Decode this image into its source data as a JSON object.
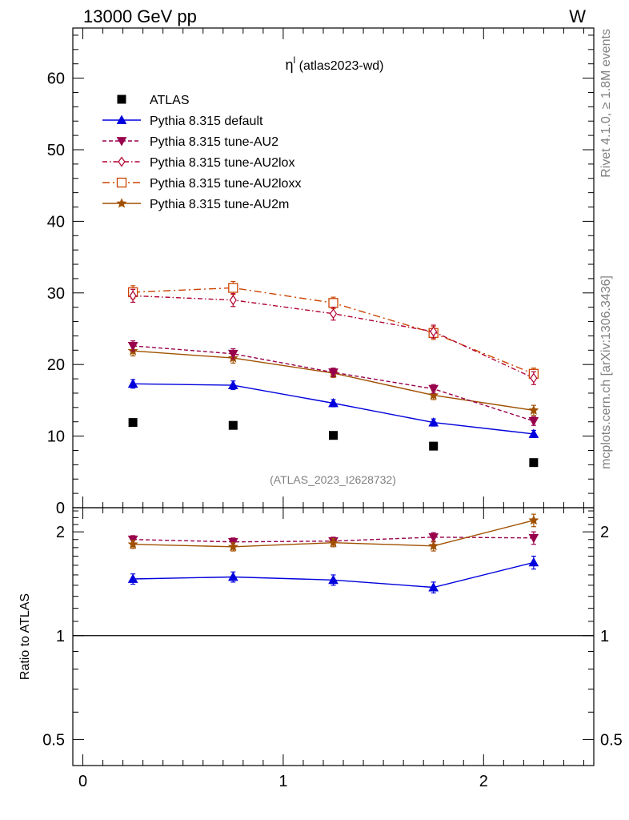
{
  "header": {
    "left": "13000 GeV pp",
    "right": "W"
  },
  "side": {
    "top": "Rivet 4.1.0, ≥ 1.8M events",
    "bottom": "mcplots.cern.ch [arXiv:1306.3436]"
  },
  "chart_data": {
    "type": "line",
    "title_main": "η",
    "title_sup": "l",
    "title_rest": " (atlas2023-wd)",
    "watermark": "(ATLAS_2023_I2628732)",
    "x": [
      0.25,
      0.75,
      1.25,
      1.75,
      2.25
    ],
    "xlim": [
      -0.05,
      2.55
    ],
    "x_ticks": [
      0,
      1,
      2
    ],
    "x_tick_labels": [
      "0",
      "1",
      "2"
    ],
    "main": {
      "ylim": [
        0,
        67
      ],
      "y_ticks": [
        10,
        20,
        30,
        40,
        50,
        60
      ],
      "y_tick_labels": [
        "10",
        "20",
        "30",
        "40",
        "50",
        "60"
      ],
      "y_zero_label": "0"
    },
    "ratio": {
      "ylabel": "Ratio to ATLAS",
      "ylim": [
        0.42,
        2.35
      ],
      "y_ticks": [
        0.5,
        1,
        2
      ],
      "y_tick_labels": [
        "0.5",
        "1",
        "2"
      ],
      "log": true
    },
    "series": [
      {
        "name": "ATLAS",
        "color": "#000000",
        "marker": "square",
        "dash": "none",
        "line": false,
        "values": [
          11.9,
          11.5,
          10.1,
          8.6,
          6.3
        ],
        "errors": [
          0.1,
          0.1,
          0.1,
          0.1,
          0.1
        ]
      },
      {
        "name": "Pythia 8.315 default",
        "color": "#0000dd",
        "marker": "triangle-up",
        "dash": "none",
        "line": true,
        "values": [
          17.3,
          17.1,
          14.6,
          11.9,
          10.3
        ],
        "errors": [
          0.6,
          0.6,
          0.5,
          0.5,
          0.5
        ],
        "ratio": [
          1.46,
          1.48,
          1.45,
          1.38,
          1.63
        ],
        "ratio_err": [
          0.05,
          0.05,
          0.05,
          0.05,
          0.07
        ]
      },
      {
        "name": "Pythia 8.315 tune-AU2",
        "color": "#99004c",
        "marker": "triangle-down",
        "dash": "5,3",
        "line": true,
        "values": [
          22.6,
          21.5,
          18.9,
          16.6,
          12.1
        ],
        "errors": [
          0.7,
          0.7,
          0.6,
          0.6,
          0.6
        ],
        "ratio": [
          1.9,
          1.87,
          1.88,
          1.93,
          1.92
        ],
        "ratio_err": [
          0.05,
          0.05,
          0.05,
          0.06,
          0.08
        ]
      },
      {
        "name": "Pythia 8.315 tune-AU2lox",
        "color": "#b00030",
        "marker": "diamond",
        "dash": "6,3,1.5,3",
        "line": true,
        "values": [
          29.6,
          29.0,
          27.1,
          24.6,
          18.1
        ],
        "errors": [
          0.9,
          0.9,
          0.9,
          0.9,
          0.9
        ]
      },
      {
        "name": "Pythia 8.315 tune-AU2loxx",
        "color": "#cc4400",
        "marker": "square-open",
        "dash": "9,4,2,4",
        "line": true,
        "values": [
          30.1,
          30.7,
          28.6,
          24.4,
          18.7
        ],
        "errors": [
          0.9,
          0.9,
          0.8,
          0.9,
          0.8
        ]
      },
      {
        "name": "Pythia 8.315 tune-AU2m",
        "color": "#a05000",
        "marker": "star",
        "dash": "none",
        "line": true,
        "values": [
          21.9,
          20.9,
          18.8,
          15.7,
          13.6
        ],
        "errors": [
          0.7,
          0.7,
          0.6,
          0.6,
          0.7
        ],
        "ratio": [
          1.84,
          1.81,
          1.86,
          1.82,
          2.16
        ],
        "ratio_err": [
          0.05,
          0.05,
          0.05,
          0.06,
          0.09
        ]
      }
    ]
  }
}
